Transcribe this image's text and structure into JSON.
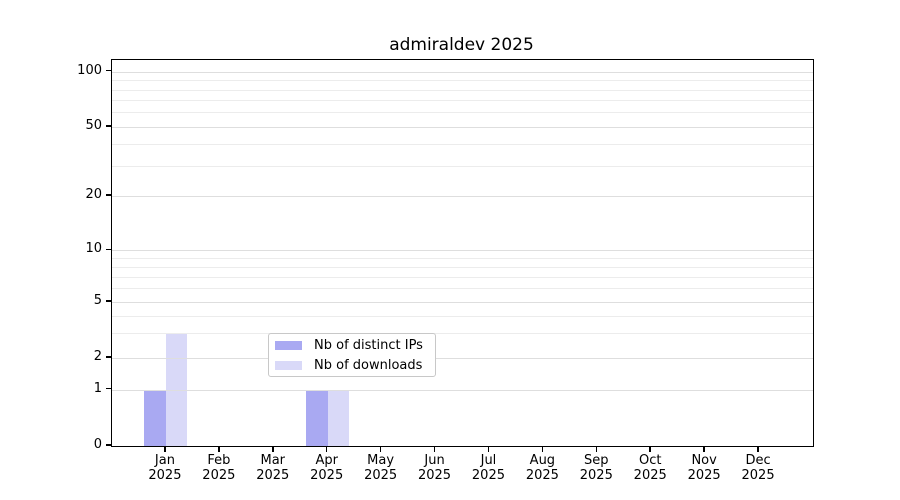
{
  "title": "admiraldev 2025",
  "chart_data": {
    "type": "bar",
    "title": "admiraldev 2025",
    "categories": [
      "Jan",
      "Feb",
      "Mar",
      "Apr",
      "May",
      "Jun",
      "Jul",
      "Aug",
      "Sep",
      "Oct",
      "Nov",
      "Dec"
    ],
    "x_year_label": "2025",
    "series": [
      {
        "name": "Nb of distinct IPs",
        "color": "#a9a9f2",
        "values": [
          1,
          0,
          0,
          1,
          0,
          0,
          0,
          0,
          0,
          0,
          0,
          0
        ]
      },
      {
        "name": "Nb of downloads",
        "color": "#d9d9f8",
        "values": [
          3,
          0,
          0,
          1,
          0,
          0,
          0,
          0,
          0,
          0,
          0,
          0
        ]
      }
    ],
    "xlabel": "",
    "ylabel": "",
    "y_axis": {
      "scale": "log-like",
      "ticks": [
        0,
        1,
        2,
        5,
        10,
        20,
        50,
        100
      ],
      "minor_gridlines": [
        3,
        4,
        6,
        7,
        8,
        9,
        30,
        40,
        60,
        70,
        80,
        90
      ],
      "ylim": [
        0,
        115
      ],
      "tick_fractions_from_top": {
        "0": 1.0,
        "1": 0.8538,
        "2": 0.7718,
        "5": 0.6266,
        "10": 0.4934,
        "20": 0.3526,
        "50": 0.1737,
        "100": 0.0303
      }
    },
    "grid": "horizontal major and minor gridlines, light gray, drawn over bars",
    "legend": {
      "position": "lower center",
      "entries": [
        "Nb of distinct IPs",
        "Nb of downloads"
      ]
    },
    "colors": {
      "axis": "#000000",
      "background": "#ffffff",
      "grid_major": "#dedede",
      "grid_minor": "#ececec"
    }
  }
}
